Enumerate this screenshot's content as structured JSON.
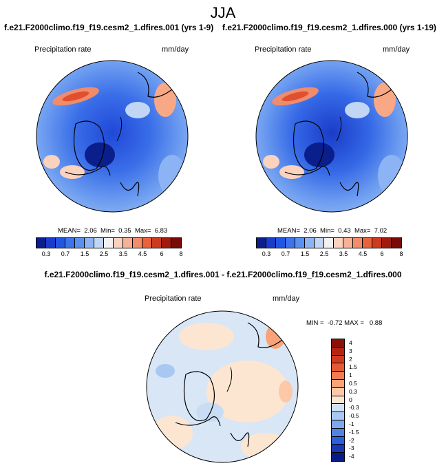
{
  "season": "JJA",
  "top_left": {
    "title": "f.e21.F2000climo.f19_f19.cesm2_1.dfires.001 (yrs 1-9)",
    "variable": "Precipitation rate",
    "units": "mm/day",
    "stats": "MEAN=  2.06  Min=  0.35  Max=  6.83"
  },
  "top_right": {
    "title": "f.e21.F2000climo.f19_f19.cesm2_1.dfires.000 (yrs 1-19)",
    "variable": "Precipitation rate",
    "units": "mm/day",
    "stats": "MEAN=  2.06  Min=  0.43  Max=  7.02"
  },
  "diff": {
    "title": "f.e21.F2000climo.f19_f19.cesm2_1.dfires.001 - f.e21.F2000climo.f19_f19.cesm2_1.dfires.000",
    "variable": "Precipitation rate",
    "units": "mm/day",
    "stats": "MIN =  -0.72 MAX =   0.88"
  },
  "abs_colorbar": {
    "colors": [
      "#0a1e8c",
      "#1a3cc8",
      "#2356e0",
      "#3c74ec",
      "#5a90f0",
      "#8cb4f4",
      "#c0d6f4",
      "#f2f0f0",
      "#fad2be",
      "#f8b096",
      "#f48c6c",
      "#e8623e",
      "#cc3a20",
      "#a01a10",
      "#780a08"
    ],
    "labels": [
      "0.3",
      "0.7",
      "1.5",
      "2.5",
      "3.5",
      "4.5",
      "6",
      "8"
    ]
  },
  "diff_colorbar": {
    "colors": [
      "#8c1008",
      "#b42410",
      "#d03a20",
      "#e45a34",
      "#f07c50",
      "#f8a478",
      "#fcc8a8",
      "#fce6d2",
      "#d2e2f6",
      "#a8c8f2",
      "#7ca8ec",
      "#5084e4",
      "#2c60d8",
      "#1838b4",
      "#0a1a84"
    ],
    "labels": [
      "4",
      "3",
      "2",
      "1.5",
      "1",
      "0.5",
      "0.3",
      "0",
      "-0.3",
      "-0.5",
      "-1",
      "-1.5",
      "-2",
      "-3",
      "-4"
    ]
  }
}
